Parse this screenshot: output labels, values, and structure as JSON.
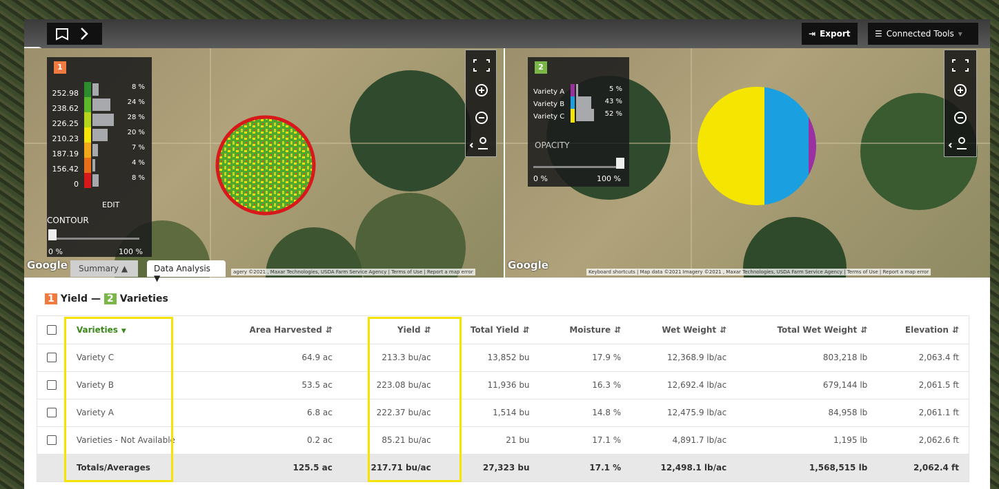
{
  "toolbar": {
    "export": "Export",
    "connected_tools": "Connected Tools"
  },
  "map_left": {
    "badge": "1",
    "legend": [
      {
        "label": "252.98",
        "color": "#2e8b2e",
        "share": 8,
        "share_label": "8 %"
      },
      {
        "label": "238.62",
        "color": "#5cb82a",
        "share": 24,
        "share_label": "24 %"
      },
      {
        "label": "226.25",
        "color": "#b5d41c",
        "share": 28,
        "share_label": "28 %"
      },
      {
        "label": "210.23",
        "color": "#f5e50a",
        "share": 20,
        "share_label": "20 %"
      },
      {
        "label": "187.19",
        "color": "#f2a81c",
        "share": 7,
        "share_label": "7 %"
      },
      {
        "label": "156.42",
        "color": "#e8701a",
        "share": 4,
        "share_label": "4 %"
      },
      {
        "label": "0",
        "color": "#d7191c",
        "share": 8,
        "share_label": "8 %"
      }
    ],
    "edit": "EDIT",
    "contour": "CONTOUR",
    "slider_min": "0 %",
    "slider_max": "100 %",
    "google": "Google",
    "attribution": "agery ©2021 , Maxar Technologies, USDA Farm Service Agency | Terms of Use | Report a map error"
  },
  "map_right": {
    "badge": "2",
    "legend": [
      {
        "label": "Variety A",
        "color": "#9b30a0",
        "share": 5,
        "share_label": "5 %"
      },
      {
        "label": "Variety B",
        "color": "#1aa0e0",
        "share": 43,
        "share_label": "43 %"
      },
      {
        "label": "Variety C",
        "color": "#f5e500",
        "share": 52,
        "share_label": "52 %"
      }
    ],
    "opacity": "OPACITY",
    "slider_min": "0 %",
    "slider_max": "100 %",
    "google": "Google",
    "attribution": "Keyboard shortcuts | Map data ©2021 Imagery ©2021 , Maxar Technologies, USDA Farm Service Agency | Terms of Use | Report a map error"
  },
  "tabs": {
    "summary": "Summary",
    "data_analysis": "Data Analysis"
  },
  "section_title": {
    "badge_1": "1",
    "label_1": "Yield",
    "separator": "—",
    "badge_2": "2",
    "label_2": "Varieties"
  },
  "table": {
    "headers": [
      "Varieties",
      "Area Harvested",
      "Yield",
      "Total Yield",
      "Moisture",
      "Wet Weight",
      "Total Wet Weight",
      "Elevation"
    ],
    "rows": [
      [
        "Variety C",
        "64.9 ac",
        "213.3 bu/ac",
        "13,852 bu",
        "17.9 %",
        "12,368.9 lb/ac",
        "803,218 lb",
        "2,063.4 ft"
      ],
      [
        "Variety B",
        "53.5 ac",
        "223.08 bu/ac",
        "11,936 bu",
        "16.3 %",
        "12,692.4 lb/ac",
        "679,144 lb",
        "2,061.5 ft"
      ],
      [
        "Variety A",
        "6.8 ac",
        "222.37 bu/ac",
        "1,514 bu",
        "14.8 %",
        "12,475.9 lb/ac",
        "84,958 lb",
        "2,061.1 ft"
      ],
      [
        "Varieties - Not Available",
        "0.2 ac",
        "85.21 bu/ac",
        "21 bu",
        "17.1 %",
        "4,891.7 lb/ac",
        "1,195 lb",
        "2,062.6 ft"
      ]
    ],
    "totals": [
      "Totals/Averages",
      "125.5 ac",
      "217.71 bu/ac",
      "27,323 bu",
      "17.1 %",
      "12,498.1 lb/ac",
      "1,568,515 lb",
      "2,062.4 ft"
    ]
  }
}
